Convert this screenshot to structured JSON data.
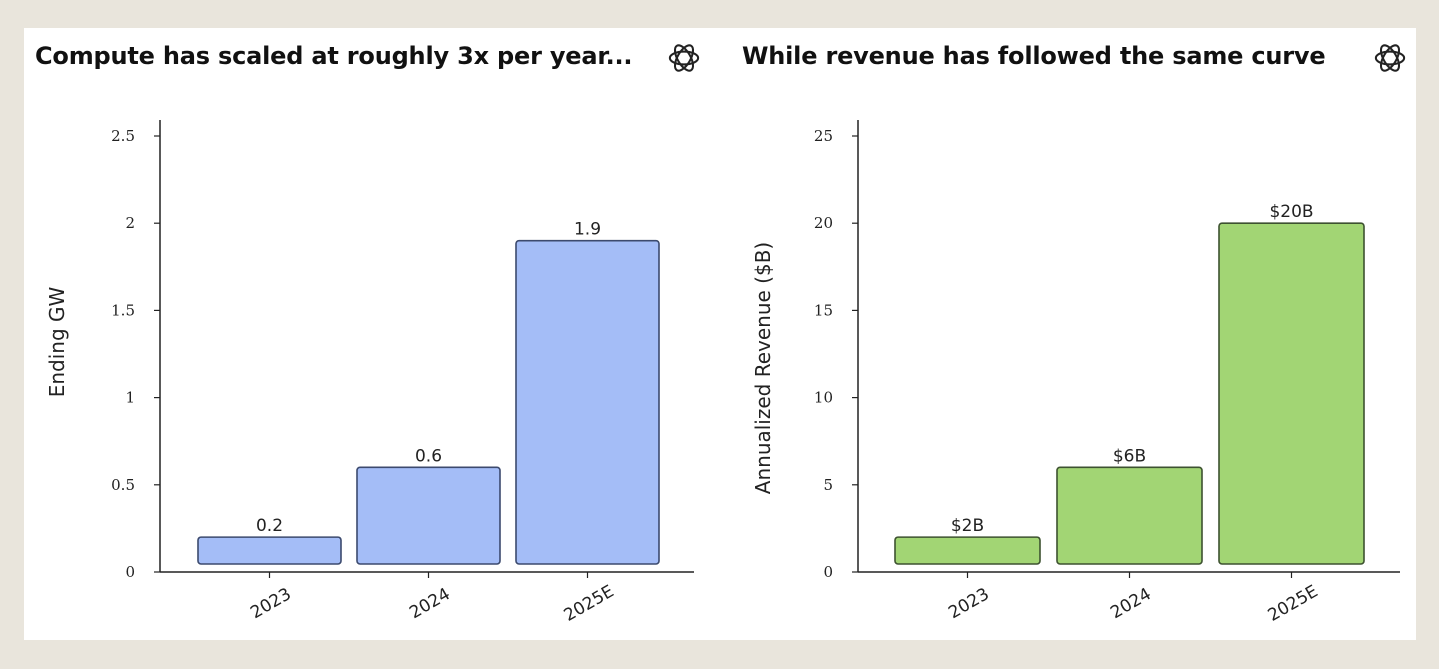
{
  "page": {
    "background": "#e9e5dc",
    "card_background": "#ffffff"
  },
  "charts": [
    {
      "header": {
        "title": "Compute has scaled at roughly 3x per year...",
        "icon": "openai-logo-icon"
      }
    },
    {
      "header": {
        "title": "While revenue has followed the same curve",
        "icon": "openai-logo-icon"
      }
    }
  ],
  "chart_data": [
    {
      "type": "bar",
      "title": "Compute has scaled at roughly 3x per year...",
      "xlabel": "",
      "ylabel": "Ending GW",
      "categories": [
        "2023",
        "2024",
        "2025E"
      ],
      "values": [
        0.2,
        0.6,
        1.9
      ],
      "value_labels": [
        "0.2",
        "0.6",
        "1.9"
      ],
      "ylim": [
        0,
        2.5
      ],
      "yticks": [
        0,
        0.5,
        1,
        1.5,
        2,
        2.5
      ],
      "ytick_labels": [
        "0",
        "0.5",
        "1",
        "1.5",
        "2",
        "2.5"
      ],
      "bar_color": "#a4bdf7",
      "bar_edge_color": "#3c4a6e",
      "grid": false,
      "legend": "none"
    },
    {
      "type": "bar",
      "title": "While revenue has followed the same curve",
      "xlabel": "",
      "ylabel": "Annualized Revenue ($B)",
      "categories": [
        "2023",
        "2024",
        "2025E"
      ],
      "values": [
        2,
        6,
        20
      ],
      "value_labels": [
        "$2B",
        "$6B",
        "$20B"
      ],
      "ylim": [
        0,
        25
      ],
      "yticks": [
        0,
        5,
        10,
        15,
        20,
        25
      ],
      "ytick_labels": [
        "0",
        "5",
        "10",
        "15",
        "20",
        "25"
      ],
      "bar_color": "#a2d574",
      "bar_edge_color": "#3d5230",
      "grid": false,
      "legend": "none"
    }
  ]
}
